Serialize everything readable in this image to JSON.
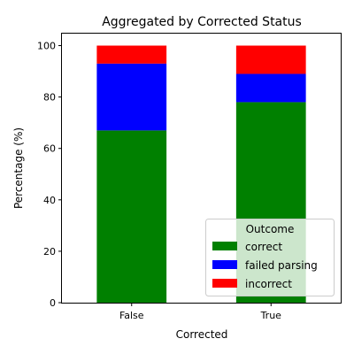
{
  "chart_data": {
    "type": "bar",
    "stacked": true,
    "title": "Aggregated by Corrected Status",
    "xlabel": "Corrected",
    "ylabel": "Percentage (%)",
    "categories": [
      "False",
      "True"
    ],
    "ylim": [
      0,
      105
    ],
    "yticks": [
      0,
      20,
      40,
      60,
      80,
      100
    ],
    "grid": false,
    "legend": {
      "title": "Outcome",
      "placement": "lower-right"
    },
    "series": [
      {
        "name": "correct",
        "color": "#008000",
        "values": [
          67,
          78
        ]
      },
      {
        "name": "failed parsing",
        "color": "#0000ff",
        "values": [
          26,
          11
        ]
      },
      {
        "name": "incorrect",
        "color": "#ff0000",
        "values": [
          7,
          11
        ]
      }
    ]
  }
}
